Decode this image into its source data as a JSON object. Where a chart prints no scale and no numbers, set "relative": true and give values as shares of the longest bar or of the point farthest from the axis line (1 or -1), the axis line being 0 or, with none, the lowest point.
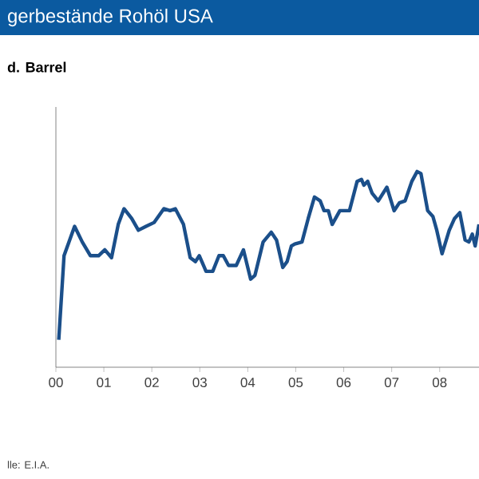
{
  "chart_data": {
    "type": "line",
    "title": "gerbestände Rohöl USA",
    "subtitle": "d. Barrel",
    "annotations": [
      "lle: E.I.A."
    ],
    "relative": true,
    "color": "#1b4f8a",
    "xlim": [
      2000,
      2008.82
    ],
    "xticks": [
      {
        "value": 2000,
        "label": "00"
      },
      {
        "value": 2001,
        "label": "01"
      },
      {
        "value": 2002,
        "label": "02"
      },
      {
        "value": 2003,
        "label": "03"
      },
      {
        "value": 2004,
        "label": "04"
      },
      {
        "value": 2005,
        "label": "05"
      },
      {
        "value": 2006,
        "label": "06"
      },
      {
        "value": 2007,
        "label": "07"
      },
      {
        "value": 2008,
        "label": "08"
      }
    ],
    "x": [
      2000.06,
      2000.17,
      2000.39,
      2000.55,
      2000.72,
      2000.89,
      2001.02,
      2001.16,
      2001.3,
      2001.42,
      2001.58,
      2001.72,
      2001.88,
      2002.05,
      2002.25,
      2002.38,
      2002.49,
      2002.66,
      2002.8,
      2002.91,
      2002.99,
      2003.13,
      2003.27,
      2003.4,
      2003.49,
      2003.6,
      2003.76,
      2003.91,
      2004.06,
      2004.15,
      2004.32,
      2004.49,
      2004.6,
      2004.73,
      2004.82,
      2004.91,
      2004.98,
      2005.13,
      2005.26,
      2005.39,
      2005.51,
      2005.59,
      2005.68,
      2005.76,
      2005.92,
      2006.04,
      2006.12,
      2006.28,
      2006.37,
      2006.42,
      2006.5,
      2006.59,
      2006.72,
      2006.9,
      2007.05,
      2007.16,
      2007.28,
      2007.42,
      2007.53,
      2007.61,
      2007.75,
      2007.86,
      2007.94,
      2008.05,
      2008.2,
      2008.31,
      2008.42,
      2008.53,
      2008.61,
      2008.68,
      2008.74,
      2008.82
    ],
    "values": [
      0.14,
      0.57,
      0.72,
      0.64,
      0.57,
      0.57,
      0.6,
      0.56,
      0.73,
      0.81,
      0.76,
      0.7,
      0.72,
      0.74,
      0.81,
      0.8,
      0.81,
      0.73,
      0.56,
      0.54,
      0.57,
      0.49,
      0.49,
      0.57,
      0.57,
      0.52,
      0.52,
      0.6,
      0.45,
      0.47,
      0.64,
      0.69,
      0.65,
      0.51,
      0.54,
      0.62,
      0.63,
      0.64,
      0.76,
      0.87,
      0.85,
      0.8,
      0.8,
      0.73,
      0.8,
      0.8,
      0.8,
      0.95,
      0.96,
      0.93,
      0.95,
      0.89,
      0.85,
      0.92,
      0.8,
      0.84,
      0.85,
      0.95,
      1.0,
      0.99,
      0.8,
      0.77,
      0.7,
      0.58,
      0.7,
      0.76,
      0.79,
      0.65,
      0.64,
      0.68,
      0.62,
      0.73
    ]
  }
}
